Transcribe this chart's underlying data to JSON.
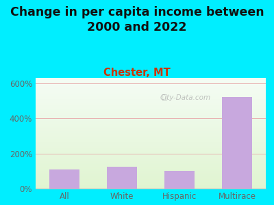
{
  "title": "Change in per capita income between\n2000 and 2022",
  "subtitle": "Chester, MT",
  "categories": [
    "All",
    "White",
    "Hispanic",
    "Multirace"
  ],
  "values": [
    110,
    125,
    100,
    520
  ],
  "bar_color": "#c8a8de",
  "title_fontsize": 12.5,
  "subtitle_fontsize": 10.5,
  "subtitle_color": "#cc3300",
  "title_color": "#111111",
  "background_outer": "#00eeff",
  "tick_color": "#666666",
  "ylim": [
    0,
    630
  ],
  "yticks": [
    0,
    200,
    400,
    600
  ],
  "watermark": "City-Data.com",
  "grid_color": "#e8b0b0",
  "axis_color": "#bbbbbb"
}
